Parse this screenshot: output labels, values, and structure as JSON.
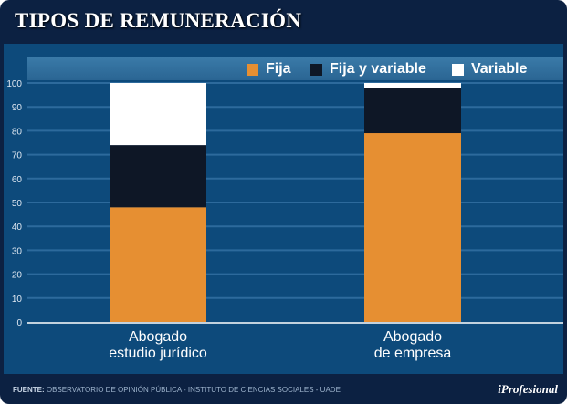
{
  "title": "TIPOS DE REMUNERACIÓN",
  "footer": {
    "source_label": "FUENTE:",
    "source_text": "OBSERVATORIO DE OPINIÓN PÚBLICA - INSTITUTO DE CIENCIAS SOCIALES - UADE",
    "logo": "iProfesional"
  },
  "chart_data": {
    "type": "bar",
    "stacked": true,
    "title": "TIPOS DE REMUNERACIÓN",
    "categories": [
      [
        "Abogado",
        "estudio jurídico"
      ],
      [
        "Abogado",
        "de empresa"
      ]
    ],
    "series": [
      {
        "name": "Fija",
        "color": "#e68f32",
        "values": [
          48,
          79
        ]
      },
      {
        "name": "Fija y variable",
        "color": "#0e1726",
        "values": [
          26,
          19
        ]
      },
      {
        "name": "Variable",
        "color": "#ffffff",
        "values": [
          26,
          2
        ]
      }
    ],
    "yticks": [
      0,
      10,
      20,
      30,
      40,
      50,
      60,
      70,
      80,
      90,
      100
    ],
    "ylim": [
      0,
      100
    ],
    "grid": true,
    "legend_position": "top-right"
  }
}
